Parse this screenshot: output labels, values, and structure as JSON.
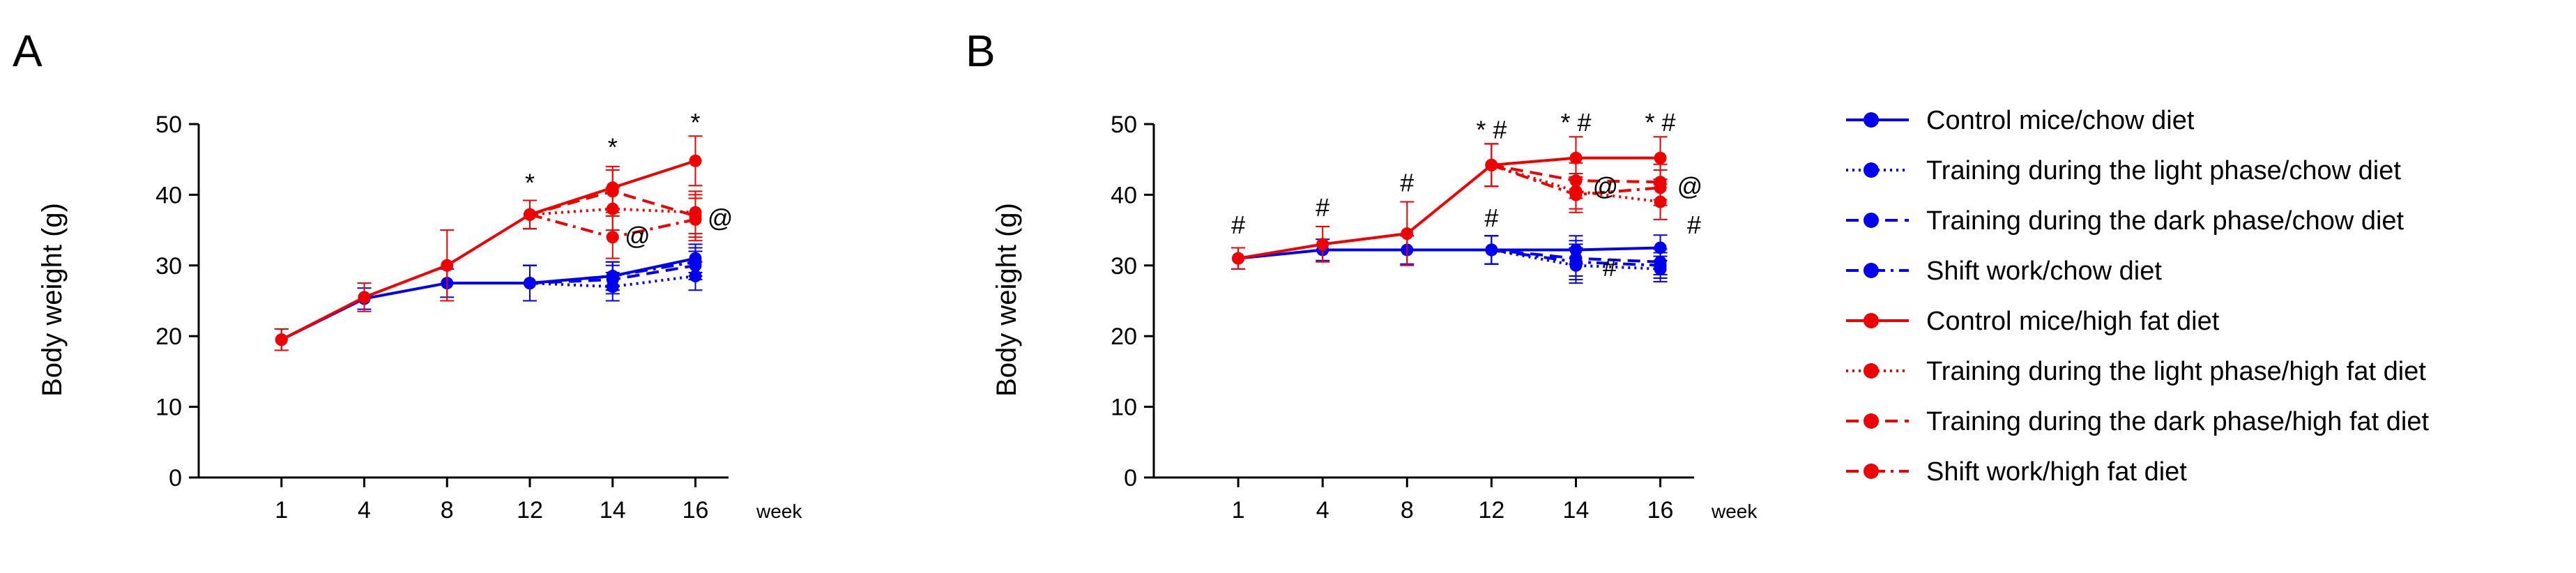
{
  "colors": {
    "chow": "#0000ee",
    "hfd": "#ee0000",
    "axis": "#000000"
  },
  "legend": [
    {
      "label": "Control mice/chow diet",
      "color": "#0000ee",
      "dash": "solid"
    },
    {
      "label": "Training during the light phase/chow diet",
      "color": "#0000ee",
      "dash": "dotted"
    },
    {
      "label": "Training during the dark phase/chow diet",
      "color": "#0000ee",
      "dash": "dashed"
    },
    {
      "label": "Shift work/chow diet",
      "color": "#0000ee",
      "dash": "dashdot"
    },
    {
      "label": "Control mice/high fat diet",
      "color": "#ee0000",
      "dash": "solid"
    },
    {
      "label": "Training during the light phase/high fat diet",
      "color": "#ee0000",
      "dash": "dotted"
    },
    {
      "label": "Training during the dark phase/high fat diet",
      "color": "#ee0000",
      "dash": "dashed"
    },
    {
      "label": "Shift work/high fat diet",
      "color": "#ee0000",
      "dash": "dashdot"
    }
  ],
  "chart_data": [
    {
      "panel": "A",
      "type": "line",
      "ylabel": "Body weight (g)",
      "xunit": "week",
      "categories": [
        "1",
        "4",
        "8",
        "12",
        "14",
        "16"
      ],
      "ylim": [
        0,
        50
      ],
      "yticks": [
        0,
        10,
        20,
        30,
        40,
        50
      ],
      "series": [
        {
          "name": "Control mice/chow diet",
          "color": "#0000ee",
          "dash": "solid",
          "values": [
            19.5,
            25.3,
            27.5,
            27.5,
            28.5,
            31.0
          ],
          "err": [
            1.5,
            1.5,
            2.0,
            2.5,
            2.0,
            2.0
          ]
        },
        {
          "name": "Training during the light phase/chow diet",
          "color": "#0000ee",
          "dash": "dotted",
          "values": [
            null,
            null,
            null,
            27.5,
            27.0,
            28.5
          ],
          "err": [
            null,
            null,
            null,
            2.5,
            2.0,
            2.0
          ]
        },
        {
          "name": "Training during the dark phase/chow diet",
          "color": "#0000ee",
          "dash": "dashed",
          "values": [
            null,
            null,
            null,
            27.5,
            28.0,
            30.0
          ],
          "err": [
            null,
            null,
            null,
            2.5,
            2.0,
            2.0
          ]
        },
        {
          "name": "Shift work/chow diet",
          "color": "#0000ee",
          "dash": "dashdot",
          "values": [
            null,
            null,
            null,
            27.5,
            28.5,
            30.5
          ],
          "err": [
            null,
            null,
            null,
            2.5,
            2.0,
            2.0
          ]
        },
        {
          "name": "Control mice/high fat diet",
          "color": "#ee0000",
          "dash": "solid",
          "values": [
            19.5,
            25.5,
            30.0,
            37.2,
            41.0,
            44.8
          ],
          "err": [
            1.5,
            2.0,
            5.0,
            2.0,
            3.0,
            3.5
          ]
        },
        {
          "name": "Training during the light phase/high fat diet",
          "color": "#ee0000",
          "dash": "dotted",
          "values": [
            null,
            null,
            null,
            37.2,
            38.0,
            37.5
          ],
          "err": [
            null,
            null,
            null,
            2.0,
            3.0,
            3.0
          ]
        },
        {
          "name": "Training during the dark phase/high fat diet",
          "color": "#ee0000",
          "dash": "dashed",
          "values": [
            null,
            null,
            null,
            37.2,
            40.5,
            37.0
          ],
          "err": [
            null,
            null,
            null,
            2.0,
            3.0,
            3.0
          ]
        },
        {
          "name": "Shift work/high fat diet",
          "color": "#ee0000",
          "dash": "dashdot",
          "values": [
            null,
            null,
            null,
            37.2,
            34.0,
            36.5
          ],
          "err": [
            null,
            null,
            null,
            2.0,
            3.0,
            3.0
          ]
        }
      ],
      "annotations": [
        {
          "text": "*",
          "x": "12",
          "y": 40.5
        },
        {
          "text": "*",
          "x": "14",
          "y": 45.5
        },
        {
          "text": "*",
          "x": "16",
          "y": 49.0
        },
        {
          "text": "@",
          "x": "14",
          "y": 33.0,
          "dx": 0.3
        },
        {
          "text": "@",
          "x": "16",
          "y": 35.5,
          "dx": 0.3
        }
      ]
    },
    {
      "panel": "B",
      "type": "line",
      "ylabel": "Body weight (g)",
      "xunit": "week",
      "categories": [
        "1",
        "4",
        "8",
        "12",
        "14",
        "16"
      ],
      "ylim": [
        0,
        50
      ],
      "yticks": [
        0,
        10,
        20,
        30,
        40,
        50
      ],
      "series": [
        {
          "name": "Control mice/chow diet",
          "color": "#0000ee",
          "dash": "solid",
          "values": [
            31.0,
            32.2,
            32.2,
            32.2,
            32.2,
            32.5
          ],
          "err": [
            1.5,
            1.5,
            2.0,
            2.0,
            2.0,
            1.8
          ]
        },
        {
          "name": "Training during the light phase/chow diet",
          "color": "#0000ee",
          "dash": "dotted",
          "values": [
            null,
            null,
            null,
            32.2,
            30.0,
            29.5
          ],
          "err": [
            null,
            null,
            null,
            2.0,
            2.5,
            1.8
          ]
        },
        {
          "name": "Training during the dark phase/chow diet",
          "color": "#0000ee",
          "dash": "dashed",
          "values": [
            null,
            null,
            null,
            32.2,
            31.0,
            30.5
          ],
          "err": [
            null,
            null,
            null,
            2.0,
            2.5,
            1.8
          ]
        },
        {
          "name": "Shift work/chow diet",
          "color": "#0000ee",
          "dash": "dashdot",
          "values": [
            null,
            null,
            null,
            32.2,
            30.5,
            30.0
          ],
          "err": [
            null,
            null,
            null,
            2.0,
            2.5,
            1.8
          ]
        },
        {
          "name": "Control mice/high fat diet",
          "color": "#ee0000",
          "dash": "solid",
          "values": [
            31.0,
            33.0,
            34.5,
            44.2,
            45.2,
            45.2
          ],
          "err": [
            1.5,
            2.5,
            4.5,
            3.0,
            3.0,
            3.0
          ]
        },
        {
          "name": "Training during the light phase/high fat diet",
          "color": "#ee0000",
          "dash": "dotted",
          "values": [
            null,
            null,
            null,
            44.2,
            40.5,
            39.0
          ],
          "err": [
            null,
            null,
            null,
            3.0,
            2.5,
            2.5
          ]
        },
        {
          "name": "Training during the dark phase/high fat diet",
          "color": "#ee0000",
          "dash": "dashed",
          "values": [
            null,
            null,
            null,
            44.2,
            42.0,
            41.8
          ],
          "err": [
            null,
            null,
            null,
            3.0,
            2.5,
            2.5
          ]
        },
        {
          "name": "Shift work/high fat diet",
          "color": "#ee0000",
          "dash": "dashdot",
          "values": [
            null,
            null,
            null,
            44.2,
            40.0,
            41.0
          ],
          "err": [
            null,
            null,
            null,
            3.0,
            2.5,
            2.5
          ]
        }
      ],
      "annotations": [
        {
          "text": "#",
          "x": "1",
          "y": 34.5
        },
        {
          "text": "#",
          "x": "4",
          "y": 37.0
        },
        {
          "text": "#",
          "x": "8",
          "y": 40.5
        },
        {
          "text": "* #",
          "x": "12",
          "y": 48.0
        },
        {
          "text": "#",
          "x": "12",
          "y": 35.5
        },
        {
          "text": "* #",
          "x": "14",
          "y": 49.0
        },
        {
          "text": "#",
          "x": "14",
          "y": 28.5,
          "dx": 0.4
        },
        {
          "text": "* #",
          "x": "16",
          "y": 49.0
        },
        {
          "text": "#",
          "x": "16",
          "y": 34.5,
          "dx": 0.4
        },
        {
          "text": "@",
          "x": "14",
          "y": 40.0,
          "dx": 0.35
        },
        {
          "text": "@",
          "x": "16",
          "y": 40.0,
          "dx": 0.35
        }
      ]
    }
  ]
}
